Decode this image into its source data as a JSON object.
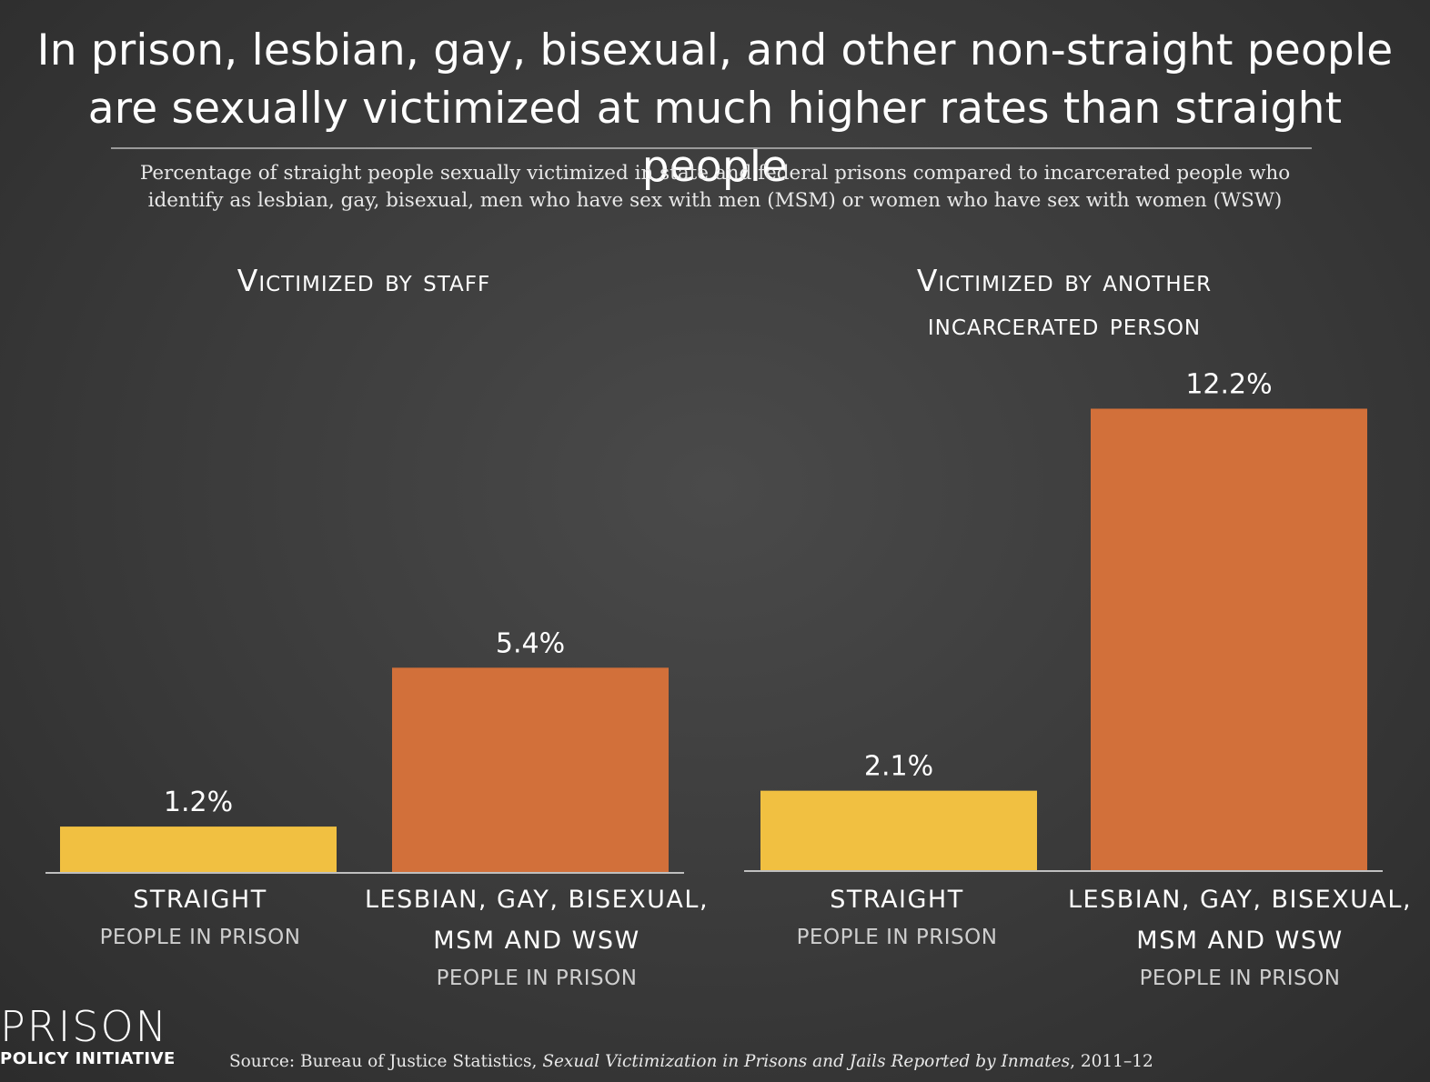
{
  "title_line1": "In prison, lesbian, gay, bisexual, and other non-straight people",
  "title_line2": "are sexually victimized at much higher rates than straight people",
  "subtitle_line1": "Percentage of straight people sexually victimized in state and federal prisons compared to incarcerated people who",
  "subtitle_line2": "identify as lesbian, gay, bisexual, men who have sex with men (MSM) or women who have sex with women (WSW)",
  "colors": {
    "straight": "#f1c041",
    "lgb": "#d2703a",
    "background": "#3a3a3a",
    "baseline": "#bfbfbf"
  },
  "chart_data": [
    {
      "type": "bar",
      "title": "Victimized by staff",
      "categories": [
        "STRAIGHT",
        "LESBIAN, GAY, BISEXUAL, MSM AND WSW"
      ],
      "category_labels": [
        {
          "main": [
            "STRAIGHT"
          ],
          "sub": "PEOPLE IN PRISON"
        },
        {
          "main": [
            "LESBIAN, GAY, BISEXUAL,",
            "MSM AND WSW"
          ],
          "sub": "PEOPLE IN PRISON"
        }
      ],
      "values": [
        1.2,
        5.4
      ],
      "value_labels": [
        "1.2%",
        "5.4%"
      ],
      "unit": "%",
      "grid": false
    },
    {
      "type": "bar",
      "title_lines": [
        "Victimized by another",
        "incarcerated person"
      ],
      "title": "Victimized by another incarcerated person",
      "categories": [
        "STRAIGHT",
        "LESBIAN, GAY, BISEXUAL, MSM AND WSW"
      ],
      "category_labels": [
        {
          "main": [
            "STRAIGHT"
          ],
          "sub": "PEOPLE IN PRISON"
        },
        {
          "main": [
            "LESBIAN, GAY, BISEXUAL,",
            "MSM AND WSW"
          ],
          "sub": "PEOPLE IN PRISON"
        }
      ],
      "values": [
        2.1,
        12.2
      ],
      "value_labels": [
        "2.1%",
        "12.2%"
      ],
      "unit": "%",
      "grid": false
    }
  ],
  "logo": {
    "line1": "PRISON",
    "line2": "POLICY INITIATIVE"
  },
  "source": {
    "prefix": "Source: Bureau of Justice Statistics, ",
    "title": "Sexual Victimization in Prisons and Jails Reported by Inmates",
    "suffix": ", 2011–12"
  }
}
